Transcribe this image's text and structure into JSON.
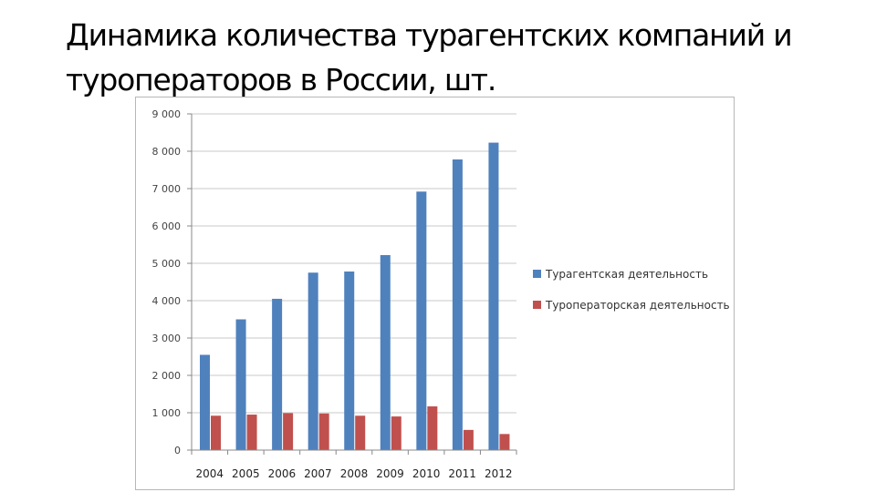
{
  "title": {
    "line1": "Динамика количества турагентских компаний и",
    "line2": "туроператоров в России, шт."
  },
  "chart_data": {
    "type": "bar",
    "categories": [
      "2004",
      "2005",
      "2006",
      "2007",
      "2008",
      "2009",
      "2010",
      "2011",
      "2012"
    ],
    "series": [
      {
        "name": "Турагентская деятельность",
        "color": "#4f81bd",
        "values": [
          2550,
          3500,
          4050,
          4750,
          4780,
          5220,
          6920,
          7780,
          8230
        ]
      },
      {
        "name": "Туроператорская деятельность",
        "color": "#c0504d",
        "values": [
          920,
          950,
          990,
          980,
          920,
          900,
          1170,
          540,
          430
        ]
      }
    ],
    "y_ticks": [
      "0",
      "1 000",
      "2 000",
      "3 000",
      "4 000",
      "5 000",
      "6 000",
      "7 000",
      "8 000",
      "9 000"
    ],
    "ylim": [
      0,
      9000
    ],
    "grid": true,
    "legend_position": "right"
  }
}
